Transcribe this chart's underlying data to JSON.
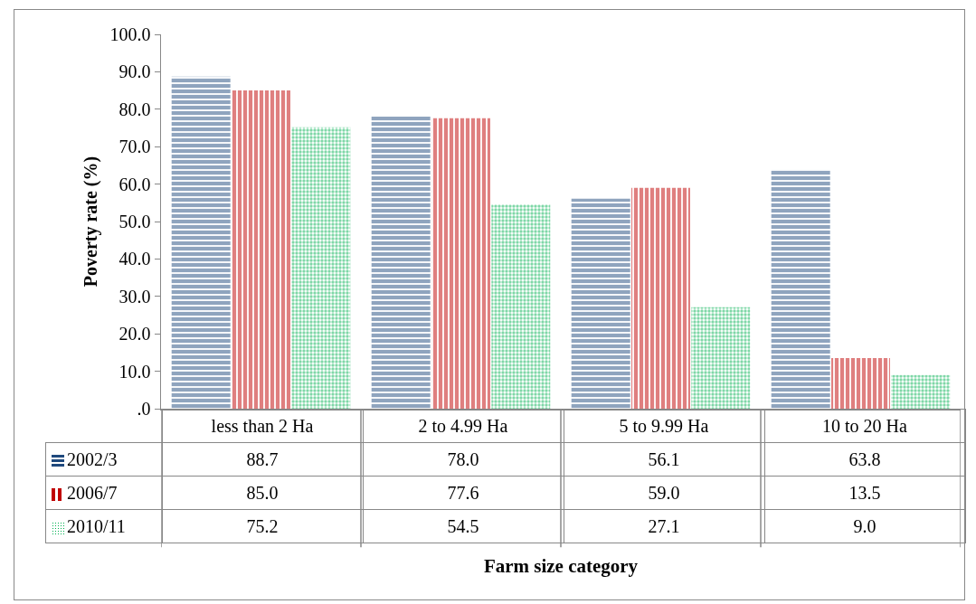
{
  "chart_data": {
    "type": "bar",
    "ylabel": "Poverty rate (%)",
    "annotations": [
      "Farm size category"
    ],
    "categories": [
      "less than 2 Ha",
      "2 to 4.99 Ha",
      "5 to 9.99 Ha",
      "10 to 20 Ha"
    ],
    "series": [
      {
        "name": "2002/3",
        "color": "#1f497d",
        "values": [
          88.7,
          78.0,
          56.1,
          63.8
        ],
        "value_labels": [
          "88.7",
          "78.0",
          "56.1",
          "63.8"
        ]
      },
      {
        "name": "2006/7",
        "color": "#c00000",
        "values": [
          85.0,
          77.6,
          59.0,
          13.5
        ],
        "value_labels": [
          "85.0",
          "77.6",
          "59.0",
          "13.5"
        ]
      },
      {
        "name": "2010/11",
        "color": "#00b050",
        "values": [
          75.2,
          54.5,
          27.1,
          9.0
        ],
        "value_labels": [
          "75.2",
          "54.5",
          "27.1",
          "9.0"
        ]
      }
    ],
    "ylim": [
      0,
      100
    ],
    "yticks": [
      {
        "value": 0,
        "label": ".0"
      },
      {
        "value": 10,
        "label": "10.0"
      },
      {
        "value": 20,
        "label": "20.0"
      },
      {
        "value": 30,
        "label": "30.0"
      },
      {
        "value": 40,
        "label": "40.0"
      },
      {
        "value": 50,
        "label": "50.0"
      },
      {
        "value": 60,
        "label": "60.0"
      },
      {
        "value": 70,
        "label": "70.0"
      },
      {
        "value": 80,
        "label": "80.0"
      },
      {
        "value": 90,
        "label": "90.0"
      },
      {
        "value": 100,
        "label": "100.0"
      }
    ],
    "grid": false,
    "legend": "bottom"
  }
}
